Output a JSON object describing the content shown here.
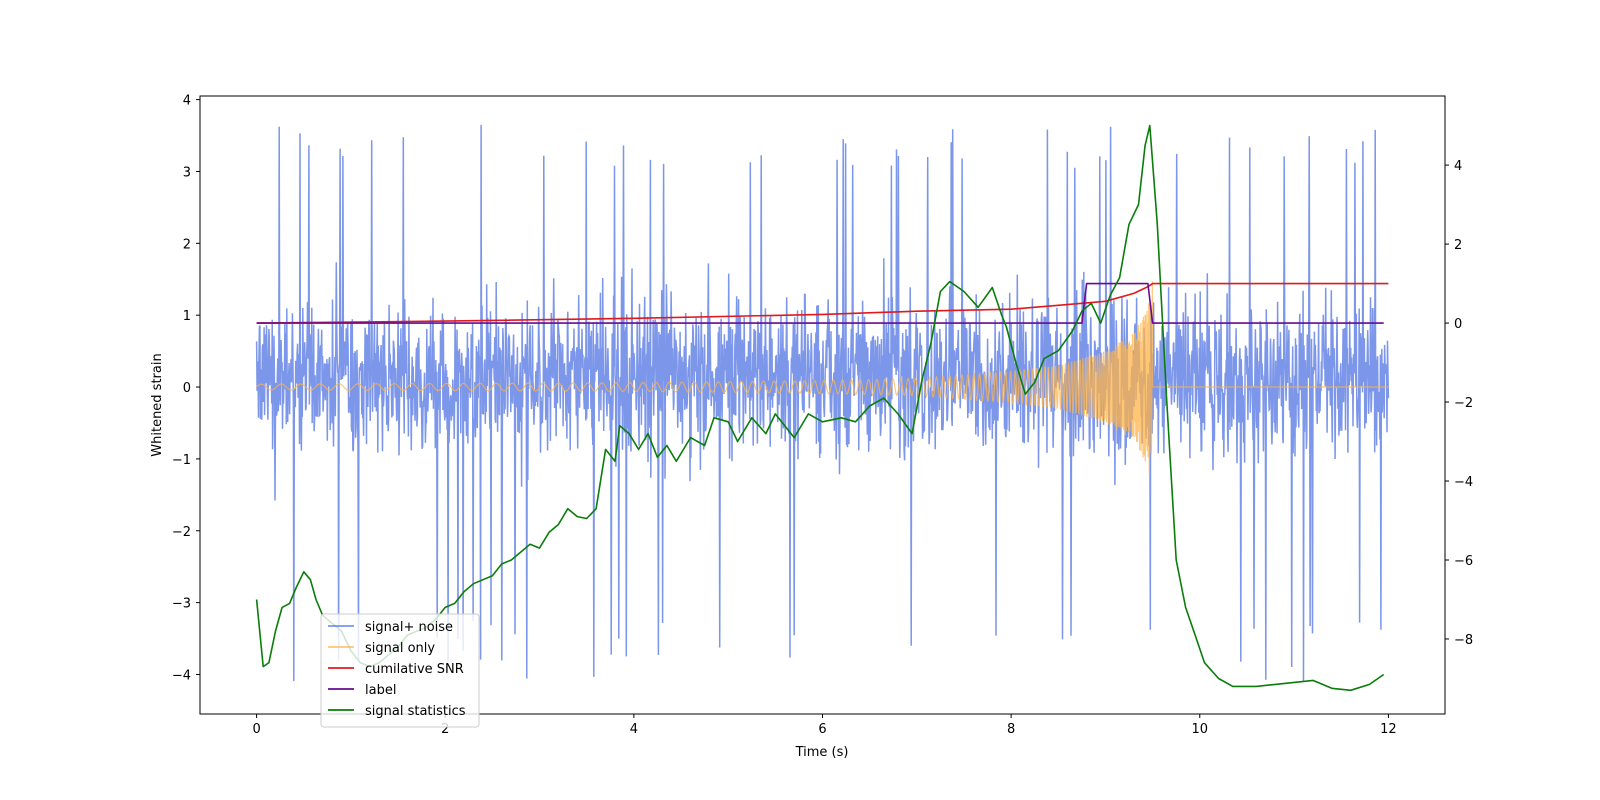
{
  "chart_data": {
    "type": "line",
    "xlabel": "Time (s)",
    "ylabel": "Whitened strain",
    "xlim": [
      -0.6,
      12.6
    ],
    "ylim": [
      -4.55,
      4.05
    ],
    "y2lim": [
      -9.9,
      5.75
    ],
    "x_ticks": [
      0,
      2,
      4,
      6,
      8,
      10,
      12
    ],
    "x_tick_labels": [
      "0",
      "2",
      "4",
      "6",
      "8",
      "10",
      "12"
    ],
    "y_ticks": [
      4,
      3,
      2,
      1,
      0,
      -1,
      -2,
      -3,
      -4
    ],
    "y_tick_labels": [
      "4",
      "3",
      "2",
      "1",
      "0",
      "−1",
      "−2",
      "−3",
      "−4"
    ],
    "y2_ticks": [
      4,
      2,
      0,
      -2,
      -4,
      -6,
      -8
    ],
    "y2_tick_labels": [
      "4",
      "2",
      "0",
      "−2",
      "−4",
      "−6",
      "−8"
    ],
    "grid": false,
    "legend_position": "lower-left",
    "series": [
      {
        "name": "signal+ noise",
        "axis": "left",
        "color": "#4a6ee0",
        "kind": "noise",
        "x_range": [
          0,
          12
        ],
        "typical_band": [
          -1.5,
          1.8
        ],
        "peak_range": [
          -4.15,
          3.65
        ]
      },
      {
        "name": "signal only",
        "axis": "left",
        "color": "#ffb347",
        "kind": "chirp",
        "x_range": [
          0,
          9.5
        ],
        "after_merger_value": 0,
        "envelope": [
          {
            "x": 0,
            "y": 0.04
          },
          {
            "x": 4,
            "y": 0.06
          },
          {
            "x": 6,
            "y": 0.09
          },
          {
            "x": 7,
            "y": 0.12
          },
          {
            "x": 8,
            "y": 0.22
          },
          {
            "x": 8.5,
            "y": 0.3
          },
          {
            "x": 9,
            "y": 0.5
          },
          {
            "x": 9.3,
            "y": 0.75
          },
          {
            "x": 9.45,
            "y": 1.1
          },
          {
            "x": 9.5,
            "y": 1.5
          }
        ]
      },
      {
        "name": "cumilative SNR",
        "axis": "right",
        "color": "#e0191f",
        "points": [
          {
            "x": 0,
            "y": 0
          },
          {
            "x": 2,
            "y": 0.05
          },
          {
            "x": 4,
            "y": 0.12
          },
          {
            "x": 6,
            "y": 0.22
          },
          {
            "x": 7,
            "y": 0.3
          },
          {
            "x": 8,
            "y": 0.35
          },
          {
            "x": 8.5,
            "y": 0.45
          },
          {
            "x": 9,
            "y": 0.55
          },
          {
            "x": 9.3,
            "y": 0.75
          },
          {
            "x": 9.45,
            "y": 0.92
          },
          {
            "x": 9.5,
            "y": 1.0
          },
          {
            "x": 12,
            "y": 1.0
          }
        ]
      },
      {
        "name": "label",
        "axis": "right",
        "color": "#6a0a8f",
        "points": [
          {
            "x": 0,
            "y": 0
          },
          {
            "x": 8.75,
            "y": 0
          },
          {
            "x": 8.8,
            "y": 1.0
          },
          {
            "x": 9.45,
            "y": 1.0
          },
          {
            "x": 9.5,
            "y": 0
          },
          {
            "x": 11.95,
            "y": 0
          }
        ]
      },
      {
        "name": "signal statistics",
        "axis": "right",
        "color": "#0a7d0a",
        "points": [
          {
            "x": 0,
            "y": -7.0
          },
          {
            "x": 0.07,
            "y": -8.7
          },
          {
            "x": 0.13,
            "y": -8.6
          },
          {
            "x": 0.2,
            "y": -7.8
          },
          {
            "x": 0.27,
            "y": -7.2
          },
          {
            "x": 0.35,
            "y": -7.1
          },
          {
            "x": 0.42,
            "y": -6.7
          },
          {
            "x": 0.5,
            "y": -6.3
          },
          {
            "x": 0.57,
            "y": -6.5
          },
          {
            "x": 0.63,
            "y": -7.0
          },
          {
            "x": 0.7,
            "y": -7.4
          },
          {
            "x": 0.8,
            "y": -7.6
          },
          {
            "x": 0.9,
            "y": -7.8
          },
          {
            "x": 1.0,
            "y": -8.3
          },
          {
            "x": 1.1,
            "y": -8.6
          },
          {
            "x": 1.2,
            "y": -8.7
          },
          {
            "x": 1.3,
            "y": -8.6
          },
          {
            "x": 1.4,
            "y": -8.4
          },
          {
            "x": 1.5,
            "y": -8.2
          },
          {
            "x": 1.6,
            "y": -7.9
          },
          {
            "x": 1.7,
            "y": -7.8
          },
          {
            "x": 1.8,
            "y": -7.7
          },
          {
            "x": 1.9,
            "y": -7.5
          },
          {
            "x": 2.0,
            "y": -7.2
          },
          {
            "x": 2.1,
            "y": -7.1
          },
          {
            "x": 2.2,
            "y": -6.8
          },
          {
            "x": 2.3,
            "y": -6.6
          },
          {
            "x": 2.4,
            "y": -6.5
          },
          {
            "x": 2.5,
            "y": -6.4
          },
          {
            "x": 2.6,
            "y": -6.1
          },
          {
            "x": 2.7,
            "y": -6.0
          },
          {
            "x": 2.8,
            "y": -5.8
          },
          {
            "x": 2.9,
            "y": -5.6
          },
          {
            "x": 3.0,
            "y": -5.7
          },
          {
            "x": 3.1,
            "y": -5.3
          },
          {
            "x": 3.2,
            "y": -5.1
          },
          {
            "x": 3.3,
            "y": -4.7
          },
          {
            "x": 3.4,
            "y": -4.9
          },
          {
            "x": 3.5,
            "y": -4.95
          },
          {
            "x": 3.6,
            "y": -4.7
          },
          {
            "x": 3.7,
            "y": -3.2
          },
          {
            "x": 3.8,
            "y": -3.5
          },
          {
            "x": 3.85,
            "y": -2.6
          },
          {
            "x": 3.95,
            "y": -2.8
          },
          {
            "x": 4.05,
            "y": -3.2
          },
          {
            "x": 4.15,
            "y": -2.8
          },
          {
            "x": 4.25,
            "y": -3.4
          },
          {
            "x": 4.35,
            "y": -3.1
          },
          {
            "x": 4.45,
            "y": -3.5
          },
          {
            "x": 4.6,
            "y": -2.9
          },
          {
            "x": 4.75,
            "y": -3.1
          },
          {
            "x": 4.85,
            "y": -2.4
          },
          {
            "x": 5.0,
            "y": -2.5
          },
          {
            "x": 5.1,
            "y": -3.0
          },
          {
            "x": 5.25,
            "y": -2.4
          },
          {
            "x": 5.4,
            "y": -2.8
          },
          {
            "x": 5.5,
            "y": -2.3
          },
          {
            "x": 5.7,
            "y": -2.9
          },
          {
            "x": 5.85,
            "y": -2.3
          },
          {
            "x": 6.0,
            "y": -2.5
          },
          {
            "x": 6.2,
            "y": -2.4
          },
          {
            "x": 6.35,
            "y": -2.5
          },
          {
            "x": 6.5,
            "y": -2.1
          },
          {
            "x": 6.65,
            "y": -1.9
          },
          {
            "x": 6.8,
            "y": -2.3
          },
          {
            "x": 6.95,
            "y": -2.8
          },
          {
            "x": 7.05,
            "y": -1.5
          },
          {
            "x": 7.15,
            "y": -0.5
          },
          {
            "x": 7.25,
            "y": 0.8
          },
          {
            "x": 7.35,
            "y": 1.05
          },
          {
            "x": 7.5,
            "y": 0.8
          },
          {
            "x": 7.65,
            "y": 0.4
          },
          {
            "x": 7.8,
            "y": 0.9
          },
          {
            "x": 7.9,
            "y": 0.2
          },
          {
            "x": 7.95,
            "y": -0.1
          },
          {
            "x": 8.05,
            "y": -1.0
          },
          {
            "x": 8.15,
            "y": -1.8
          },
          {
            "x": 8.25,
            "y": -1.5
          },
          {
            "x": 8.35,
            "y": -0.9
          },
          {
            "x": 8.5,
            "y": -0.7
          },
          {
            "x": 8.65,
            "y": -0.2
          },
          {
            "x": 8.75,
            "y": 0.3
          },
          {
            "x": 8.85,
            "y": 0.5
          },
          {
            "x": 8.95,
            "y": 0.0
          },
          {
            "x": 9.05,
            "y": 0.7
          },
          {
            "x": 9.15,
            "y": 1.15
          },
          {
            "x": 9.25,
            "y": 2.5
          },
          {
            "x": 9.35,
            "y": 3.0
          },
          {
            "x": 9.42,
            "y": 4.5
          },
          {
            "x": 9.47,
            "y": 5.0
          },
          {
            "x": 9.55,
            "y": 2.5
          },
          {
            "x": 9.65,
            "y": -2.0
          },
          {
            "x": 9.75,
            "y": -6.0
          },
          {
            "x": 9.85,
            "y": -7.2
          },
          {
            "x": 9.95,
            "y": -7.9
          },
          {
            "x": 10.05,
            "y": -8.6
          },
          {
            "x": 10.2,
            "y": -9.0
          },
          {
            "x": 10.35,
            "y": -9.2
          },
          {
            "x": 10.6,
            "y": -9.2
          },
          {
            "x": 10.8,
            "y": -9.15
          },
          {
            "x": 11.0,
            "y": -9.1
          },
          {
            "x": 11.2,
            "y": -9.05
          },
          {
            "x": 11.4,
            "y": -9.25
          },
          {
            "x": 11.6,
            "y": -9.3
          },
          {
            "x": 11.8,
            "y": -9.15
          },
          {
            "x": 11.95,
            "y": -8.9
          }
        ]
      }
    ]
  }
}
